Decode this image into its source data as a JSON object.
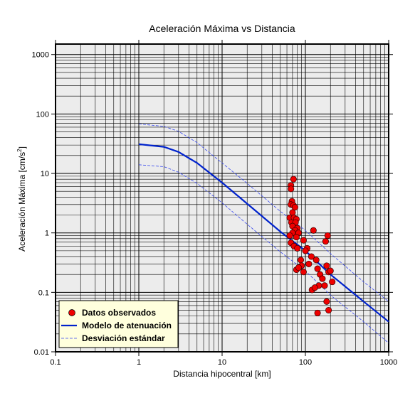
{
  "chart_data": {
    "type": "scatter",
    "title": "Aceleración Máxima vs Distancia",
    "xlabel": "Distancia hipocentral [km]",
    "ylabel_main": "Aceleración Máxima [cm/s",
    "ylabel_sup": "2",
    "ylabel_end": "]",
    "x_scale": "log",
    "y_scale": "log",
    "xlim": [
      0.1,
      1000
    ],
    "ylim": [
      0.01,
      1500
    ],
    "x_ticks": [
      {
        "value": 0.1,
        "label": "0.1"
      },
      {
        "value": 1,
        "label": "1"
      },
      {
        "value": 10,
        "label": "10"
      },
      {
        "value": 100,
        "label": "100"
      },
      {
        "value": 1000,
        "label": "1000"
      }
    ],
    "y_ticks": [
      {
        "value": 0.01,
        "label": "0.01"
      },
      {
        "value": 0.1,
        "label": "0.1"
      },
      {
        "value": 1,
        "label": "1"
      },
      {
        "value": 10,
        "label": "10"
      },
      {
        "value": 100,
        "label": "100"
      },
      {
        "value": 1000,
        "label": "1000"
      }
    ],
    "grid": true,
    "legend_position": "bottom-left",
    "colors": {
      "plot_background": "#ececec",
      "legend_background": "#ffffdd",
      "points": "#ee0000",
      "model": "#0022cc",
      "deviation": "#3344ee"
    },
    "series": [
      {
        "name": "Datos observados",
        "kind": "points",
        "points": [
          [
            72,
            8.0
          ],
          [
            67,
            6.3
          ],
          [
            67,
            5.5
          ],
          [
            69,
            3.4
          ],
          [
            67,
            3.0
          ],
          [
            72,
            2.9
          ],
          [
            75,
            2.7
          ],
          [
            70,
            2.2
          ],
          [
            65,
            1.8
          ],
          [
            73,
            1.8
          ],
          [
            78,
            1.7
          ],
          [
            68,
            1.5
          ],
          [
            76,
            1.5
          ],
          [
            70,
            1.3
          ],
          [
            80,
            1.2
          ],
          [
            75,
            1.1
          ],
          [
            70,
            1.0
          ],
          [
            83,
            1.0
          ],
          [
            65,
            0.9
          ],
          [
            78,
            0.85
          ],
          [
            95,
            0.75
          ],
          [
            67,
            0.68
          ],
          [
            73,
            0.6
          ],
          [
            80,
            0.55
          ],
          [
            105,
            0.55
          ],
          [
            100,
            0.5
          ],
          [
            88,
            0.35
          ],
          [
            90,
            0.28
          ],
          [
            110,
            0.3
          ],
          [
            118,
            0.4
          ],
          [
            125,
            1.1
          ],
          [
            135,
            0.35
          ],
          [
            140,
            0.25
          ],
          [
            150,
            0.2
          ],
          [
            160,
            0.17
          ],
          [
            170,
            0.13
          ],
          [
            175,
            0.72
          ],
          [
            185,
            0.9
          ],
          [
            180,
            0.28
          ],
          [
            190,
            0.22
          ],
          [
            200,
            0.23
          ],
          [
            210,
            0.15
          ],
          [
            120,
            0.11
          ],
          [
            145,
            0.13
          ],
          [
            180,
            0.07
          ],
          [
            190,
            0.05
          ],
          [
            140,
            0.045
          ],
          [
            78,
            0.24
          ],
          [
            83,
            0.26
          ],
          [
            95,
            0.22
          ],
          [
            130,
            0.12
          ]
        ]
      },
      {
        "name": "Modelo de atenuación",
        "kind": "line",
        "points": [
          [
            1,
            31
          ],
          [
            2,
            28
          ],
          [
            3,
            23
          ],
          [
            5,
            15
          ],
          [
            10,
            7
          ],
          [
            20,
            3.1
          ],
          [
            50,
            1.05
          ],
          [
            100,
            0.5
          ],
          [
            200,
            0.2
          ],
          [
            500,
            0.07
          ],
          [
            1000,
            0.032
          ]
        ]
      },
      {
        "name": "Desviación estándar",
        "kind": "dashed",
        "lines": [
          [
            [
              1,
              68
            ],
            [
              2,
              62
            ],
            [
              3,
              51
            ],
            [
              5,
              33
            ],
            [
              10,
              15
            ],
            [
              20,
              6.8
            ],
            [
              50,
              2.3
            ],
            [
              100,
              1.1
            ],
            [
              200,
              0.45
            ],
            [
              500,
              0.15
            ],
            [
              1000,
              0.07
            ]
          ],
          [
            [
              1,
              14
            ],
            [
              2,
              13
            ],
            [
              3,
              10.5
            ],
            [
              5,
              6.8
            ],
            [
              10,
              3.2
            ],
            [
              20,
              1.4
            ],
            [
              50,
              0.48
            ],
            [
              100,
              0.23
            ],
            [
              200,
              0.09
            ],
            [
              500,
              0.032
            ],
            [
              1000,
              0.014
            ]
          ]
        ]
      }
    ]
  }
}
